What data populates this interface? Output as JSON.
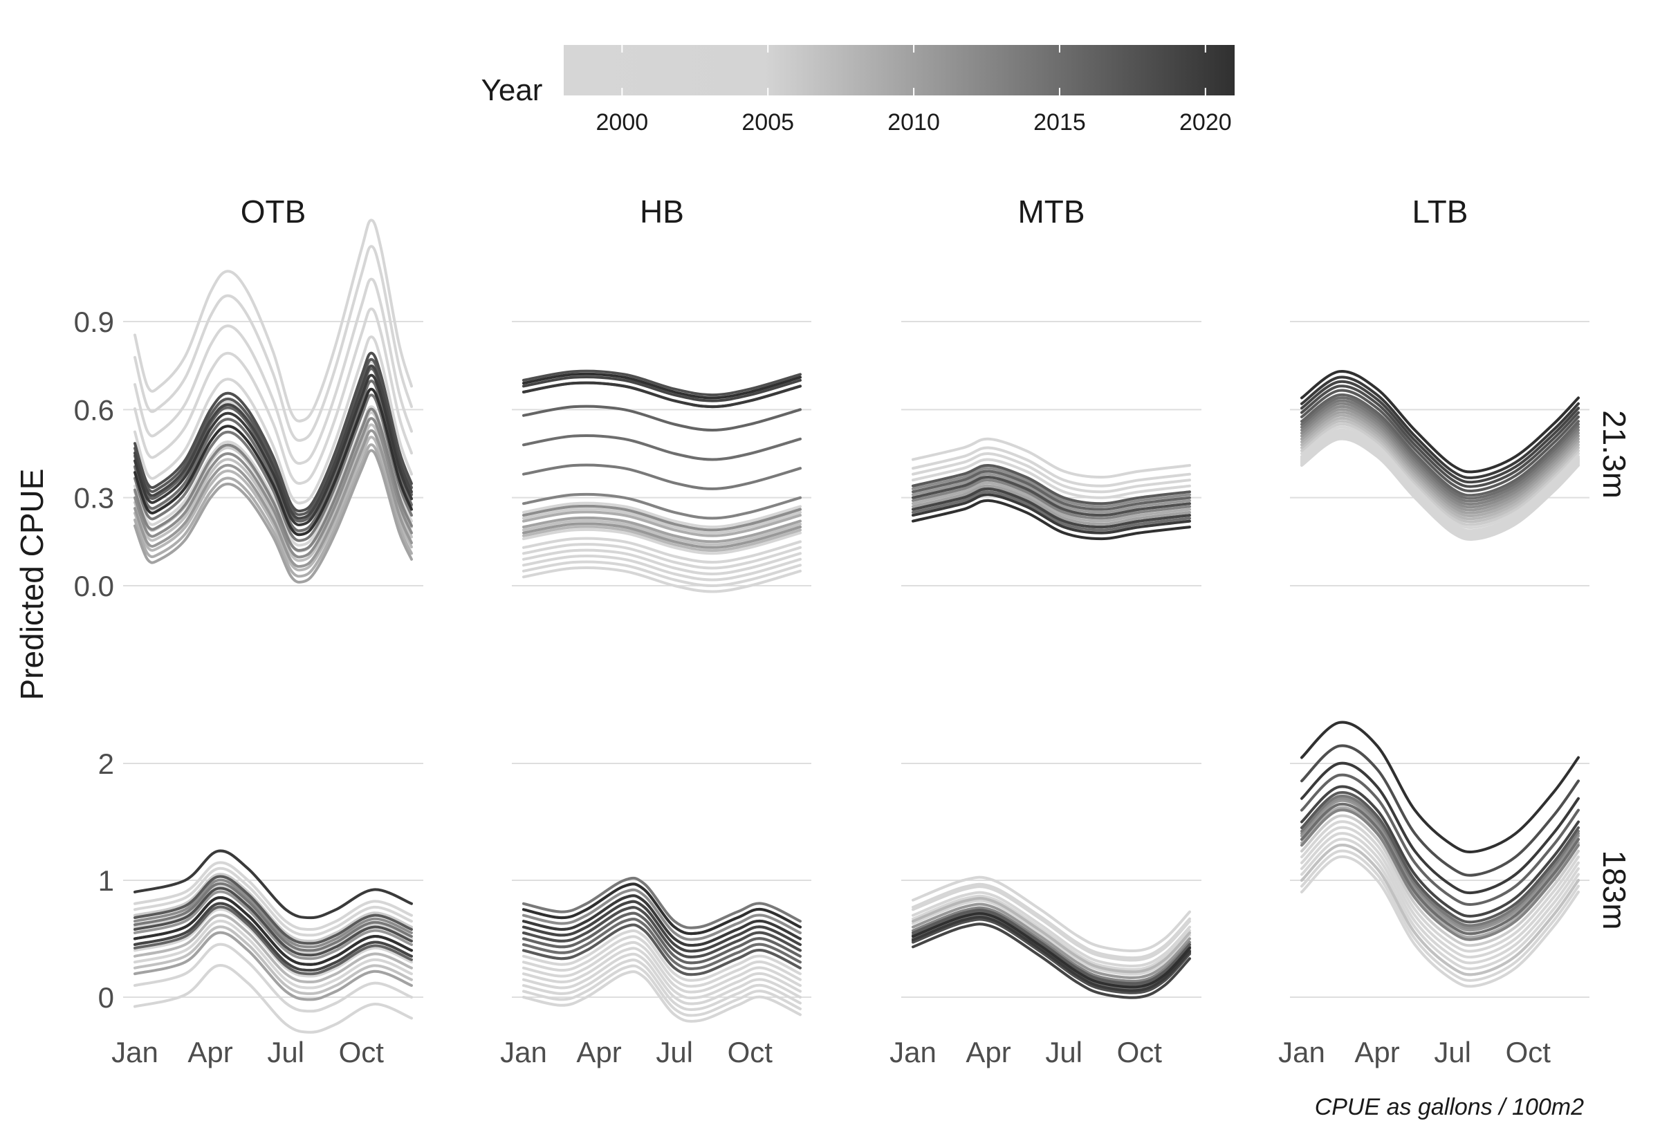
{
  "chart_data": {
    "type": "line",
    "legend": {
      "title": "Year",
      "type": "colorbar",
      "placement": "top",
      "range": [
        1998,
        2021
      ],
      "ticks": [
        2000,
        2005,
        2010,
        2015,
        2020
      ],
      "color_low": "#d6d6d6",
      "color_high": "#303030"
    },
    "ylabel": "Predicted CPUE",
    "caption": "CPUE as gallons / 100m2",
    "x_ticks": [
      "Jan",
      "Apr",
      "Jul",
      "Oct"
    ],
    "x_domain_months": [
      1,
      12
    ],
    "x_tick_months": [
      1,
      4,
      7,
      10
    ],
    "columns": [
      "OTB",
      "HB",
      "MTB",
      "LTB"
    ],
    "rows": [
      {
        "label": "21.3m",
        "y_ticks": [
          "0.0",
          "0.3",
          "0.6",
          "0.9"
        ],
        "y_tick_values": [
          0,
          0.3,
          0.6,
          0.9
        ],
        "ylim": [
          -0.03,
          1.15
        ]
      },
      {
        "label": "183m",
        "y_ticks": [
          "0",
          "1",
          "2"
        ],
        "y_tick_values": [
          0,
          1,
          2
        ],
        "ylim": [
          -0.2,
          2.3
        ]
      }
    ],
    "years": [
      1998,
      1999,
      2000,
      2001,
      2002,
      2003,
      2004,
      2005,
      2006,
      2007,
      2008,
      2009,
      2010,
      2011,
      2012,
      2013,
      2014,
      2015,
      2016,
      2017,
      2018,
      2019,
      2020,
      2021
    ],
    "panels": [
      {
        "column": "OTB",
        "row": "21.3m",
        "base": [
          [
            1,
            0.32
          ],
          [
            1.5,
            0.2
          ],
          [
            2,
            0.2
          ],
          [
            3,
            0.27
          ],
          [
            4,
            0.42
          ],
          [
            4.7,
            0.47
          ],
          [
            5.5,
            0.42
          ],
          [
            6.5,
            0.28
          ],
          [
            7.2,
            0.14
          ],
          [
            7.7,
            0.12
          ],
          [
            8.2,
            0.16
          ],
          [
            9,
            0.3
          ],
          [
            10,
            0.52
          ],
          [
            10.4,
            0.59
          ],
          [
            10.8,
            0.52
          ],
          [
            11.5,
            0.3
          ],
          [
            12,
            0.2
          ]
        ],
        "offsets": [
          0.02,
          0.39,
          0.33,
          0.26,
          0.2,
          0.14,
          0.09,
          0.05,
          0.0,
          -0.03,
          -0.06,
          -0.08,
          -0.1,
          -0.05,
          -0.02,
          0.0,
          0.03,
          0.06,
          0.09,
          0.11,
          0.12,
          0.1,
          0.08,
          0.05
        ],
        "scales": [
          1.0,
          1.45,
          1.4,
          1.33,
          1.26,
          1.2,
          1.14,
          1.1,
          1.0,
          0.98,
          0.96,
          0.95,
          0.95,
          0.98,
          1.0,
          1.02,
          1.05,
          1.08,
          1.1,
          1.12,
          1.14,
          1.1,
          1.08,
          1.05
        ]
      },
      {
        "column": "HB",
        "row": "21.3m",
        "base": [
          [
            1,
            0.2
          ],
          [
            3,
            0.23
          ],
          [
            5,
            0.22
          ],
          [
            7,
            0.17
          ],
          [
            8.5,
            0.15
          ],
          [
            10,
            0.17
          ],
          [
            12,
            0.22
          ]
        ],
        "offsets": [
          -0.04,
          -0.07,
          -0.09,
          -0.11,
          -0.13,
          -0.15,
          -0.17,
          0.05,
          0.03,
          -0.01,
          -0.03,
          0.02,
          0.0,
          -0.02,
          0.04,
          0.08,
          0.18,
          0.28,
          0.38,
          0.46,
          0.5,
          0.48,
          0.46,
          0.49
        ],
        "scales": [
          1,
          1,
          1,
          1,
          1,
          1,
          1,
          1,
          1,
          1,
          1,
          1,
          1,
          1,
          1,
          1,
          1,
          1,
          1,
          1,
          1,
          1,
          1,
          1
        ]
      },
      {
        "column": "MTB",
        "row": "21.3m",
        "base": [
          [
            1,
            0.28
          ],
          [
            3,
            0.32
          ],
          [
            4,
            0.35
          ],
          [
            5.5,
            0.31
          ],
          [
            7,
            0.24
          ],
          [
            8.5,
            0.22
          ],
          [
            10,
            0.24
          ],
          [
            12,
            0.26
          ]
        ],
        "offsets": [
          0.12,
          0.15,
          0.1,
          0.08,
          0.06,
          0.04,
          0.02,
          0.0,
          -0.02,
          -0.04,
          0.02,
          0.0,
          -0.01,
          0.03,
          0.05,
          0.01,
          -0.02,
          -0.03,
          0.04,
          0.06,
          0.02,
          -0.02,
          -0.04,
          -0.06
        ],
        "scales": [
          1,
          1,
          1,
          1,
          1,
          1,
          1,
          1,
          1,
          1,
          1,
          1,
          1,
          1,
          1,
          1,
          1,
          1,
          1,
          1,
          1,
          1,
          1,
          1
        ]
      },
      {
        "column": "LTB",
        "row": "21.3m",
        "base": [
          [
            1,
            0.44
          ],
          [
            2.5,
            0.53
          ],
          [
            4,
            0.47
          ],
          [
            5.5,
            0.33
          ],
          [
            7,
            0.21
          ],
          [
            8,
            0.19
          ],
          [
            9.5,
            0.24
          ],
          [
            11,
            0.35
          ],
          [
            12,
            0.44
          ]
        ],
        "offsets": [
          -0.03,
          -0.025,
          -0.02,
          -0.015,
          -0.01,
          -0.005,
          0.0,
          0.01,
          0.02,
          0.03,
          0.04,
          0.05,
          0.06,
          0.07,
          0.08,
          0.09,
          0.1,
          0.11,
          0.12,
          0.135,
          0.15,
          0.165,
          0.18,
          0.2
        ],
        "scales": [
          1,
          1,
          1,
          1,
          1,
          1,
          1,
          1,
          1,
          1,
          1,
          1,
          1,
          1,
          1,
          1,
          1,
          1,
          1,
          1,
          1,
          1,
          1,
          1
        ]
      },
      {
        "column": "OTB",
        "row": "183m",
        "base": [
          [
            1,
            0.5
          ],
          [
            3,
            0.6
          ],
          [
            4.3,
            0.85
          ],
          [
            5.5,
            0.7
          ],
          [
            7,
            0.35
          ],
          [
            8,
            0.28
          ],
          [
            9,
            0.35
          ],
          [
            10.5,
            0.52
          ],
          [
            12,
            0.4
          ]
        ],
        "offsets": [
          -0.58,
          -0.4,
          -0.2,
          0.1,
          0.25,
          0.3,
          0.0,
          -0.1,
          0.2,
          -0.25,
          -0.15,
          0.0,
          -0.3,
          0.05,
          0.15,
          -0.05,
          0.12,
          0.0,
          -0.08,
          0.18,
          0.08,
          -0.05,
          0.4,
          0.0
        ],
        "scales": [
          1,
          1,
          1,
          1,
          1,
          1,
          1,
          1,
          1,
          1,
          1,
          1,
          1,
          1,
          1,
          1,
          1,
          1,
          1,
          1,
          1,
          1,
          1,
          1
        ]
      },
      {
        "column": "HB",
        "row": "183m",
        "base": [
          [
            1,
            0.45
          ],
          [
            2.5,
            0.38
          ],
          [
            3.5,
            0.45
          ],
          [
            5,
            0.65
          ],
          [
            5.8,
            0.62
          ],
          [
            7,
            0.3
          ],
          [
            8,
            0.25
          ],
          [
            9.5,
            0.38
          ],
          [
            10.5,
            0.45
          ],
          [
            12,
            0.3
          ]
        ],
        "offsets": [
          -0.45,
          -0.4,
          -0.35,
          -0.3,
          -0.25,
          -0.2,
          -0.15,
          -0.1,
          -0.05,
          0.0,
          0.05,
          0.1,
          0.15,
          0.2,
          0.25,
          0.3,
          0.35,
          0.0,
          0.05,
          -0.05,
          0.1,
          0.15,
          0.2,
          0.3
        ],
        "scales": [
          1,
          1,
          1,
          1,
          1,
          1,
          1,
          1,
          1,
          1,
          1,
          1,
          1,
          1,
          1,
          1,
          1,
          1,
          1,
          1,
          1,
          1,
          1,
          1
        ]
      },
      {
        "column": "MTB",
        "row": "183m",
        "base": [
          [
            1,
            0.55
          ],
          [
            3,
            0.72
          ],
          [
            4.2,
            0.72
          ],
          [
            6,
            0.48
          ],
          [
            7.5,
            0.25
          ],
          [
            8.5,
            0.15
          ],
          [
            10,
            0.12
          ],
          [
            11,
            0.22
          ],
          [
            12,
            0.45
          ]
        ],
        "offsets": [
          0.28,
          0.22,
          0.2,
          0.15,
          0.12,
          0.08,
          0.05,
          0.02,
          0.0,
          -0.02,
          0.1,
          0.0,
          -0.05,
          0.05,
          -0.03,
          0.02,
          -0.05,
          -0.07,
          -0.02,
          0.0,
          -0.08,
          -0.12,
          -0.06,
          -0.03
        ],
        "scales": [
          1,
          1,
          1,
          1,
          1,
          1,
          1,
          1,
          1,
          1,
          1,
          1,
          1,
          1,
          1,
          1,
          1,
          1,
          1,
          1,
          1,
          1,
          1,
          1
        ]
      },
      {
        "column": "LTB",
        "row": "183m",
        "base": [
          [
            1,
            1.0
          ],
          [
            2.5,
            1.3
          ],
          [
            4,
            1.1
          ],
          [
            5.5,
            0.55
          ],
          [
            7,
            0.25
          ],
          [
            8,
            0.2
          ],
          [
            9.5,
            0.35
          ],
          [
            11,
            0.7
          ],
          [
            12,
            1.0
          ]
        ],
        "offsets": [
          -0.1,
          -0.05,
          0.0,
          0.0,
          0.05,
          0.1,
          0.15,
          0.2,
          0.25,
          0.0,
          0.3,
          0.32,
          0.35,
          0.38,
          0.4,
          0.3,
          0.42,
          0.35,
          0.6,
          0.45,
          0.85,
          0.5,
          0.7,
          1.05
        ],
        "scales": [
          1,
          1,
          1,
          1,
          1,
          1,
          1,
          1,
          1,
          1,
          1,
          1,
          1,
          1,
          1,
          1,
          1,
          1,
          1,
          1,
          1,
          1,
          1,
          1
        ]
      }
    ]
  }
}
